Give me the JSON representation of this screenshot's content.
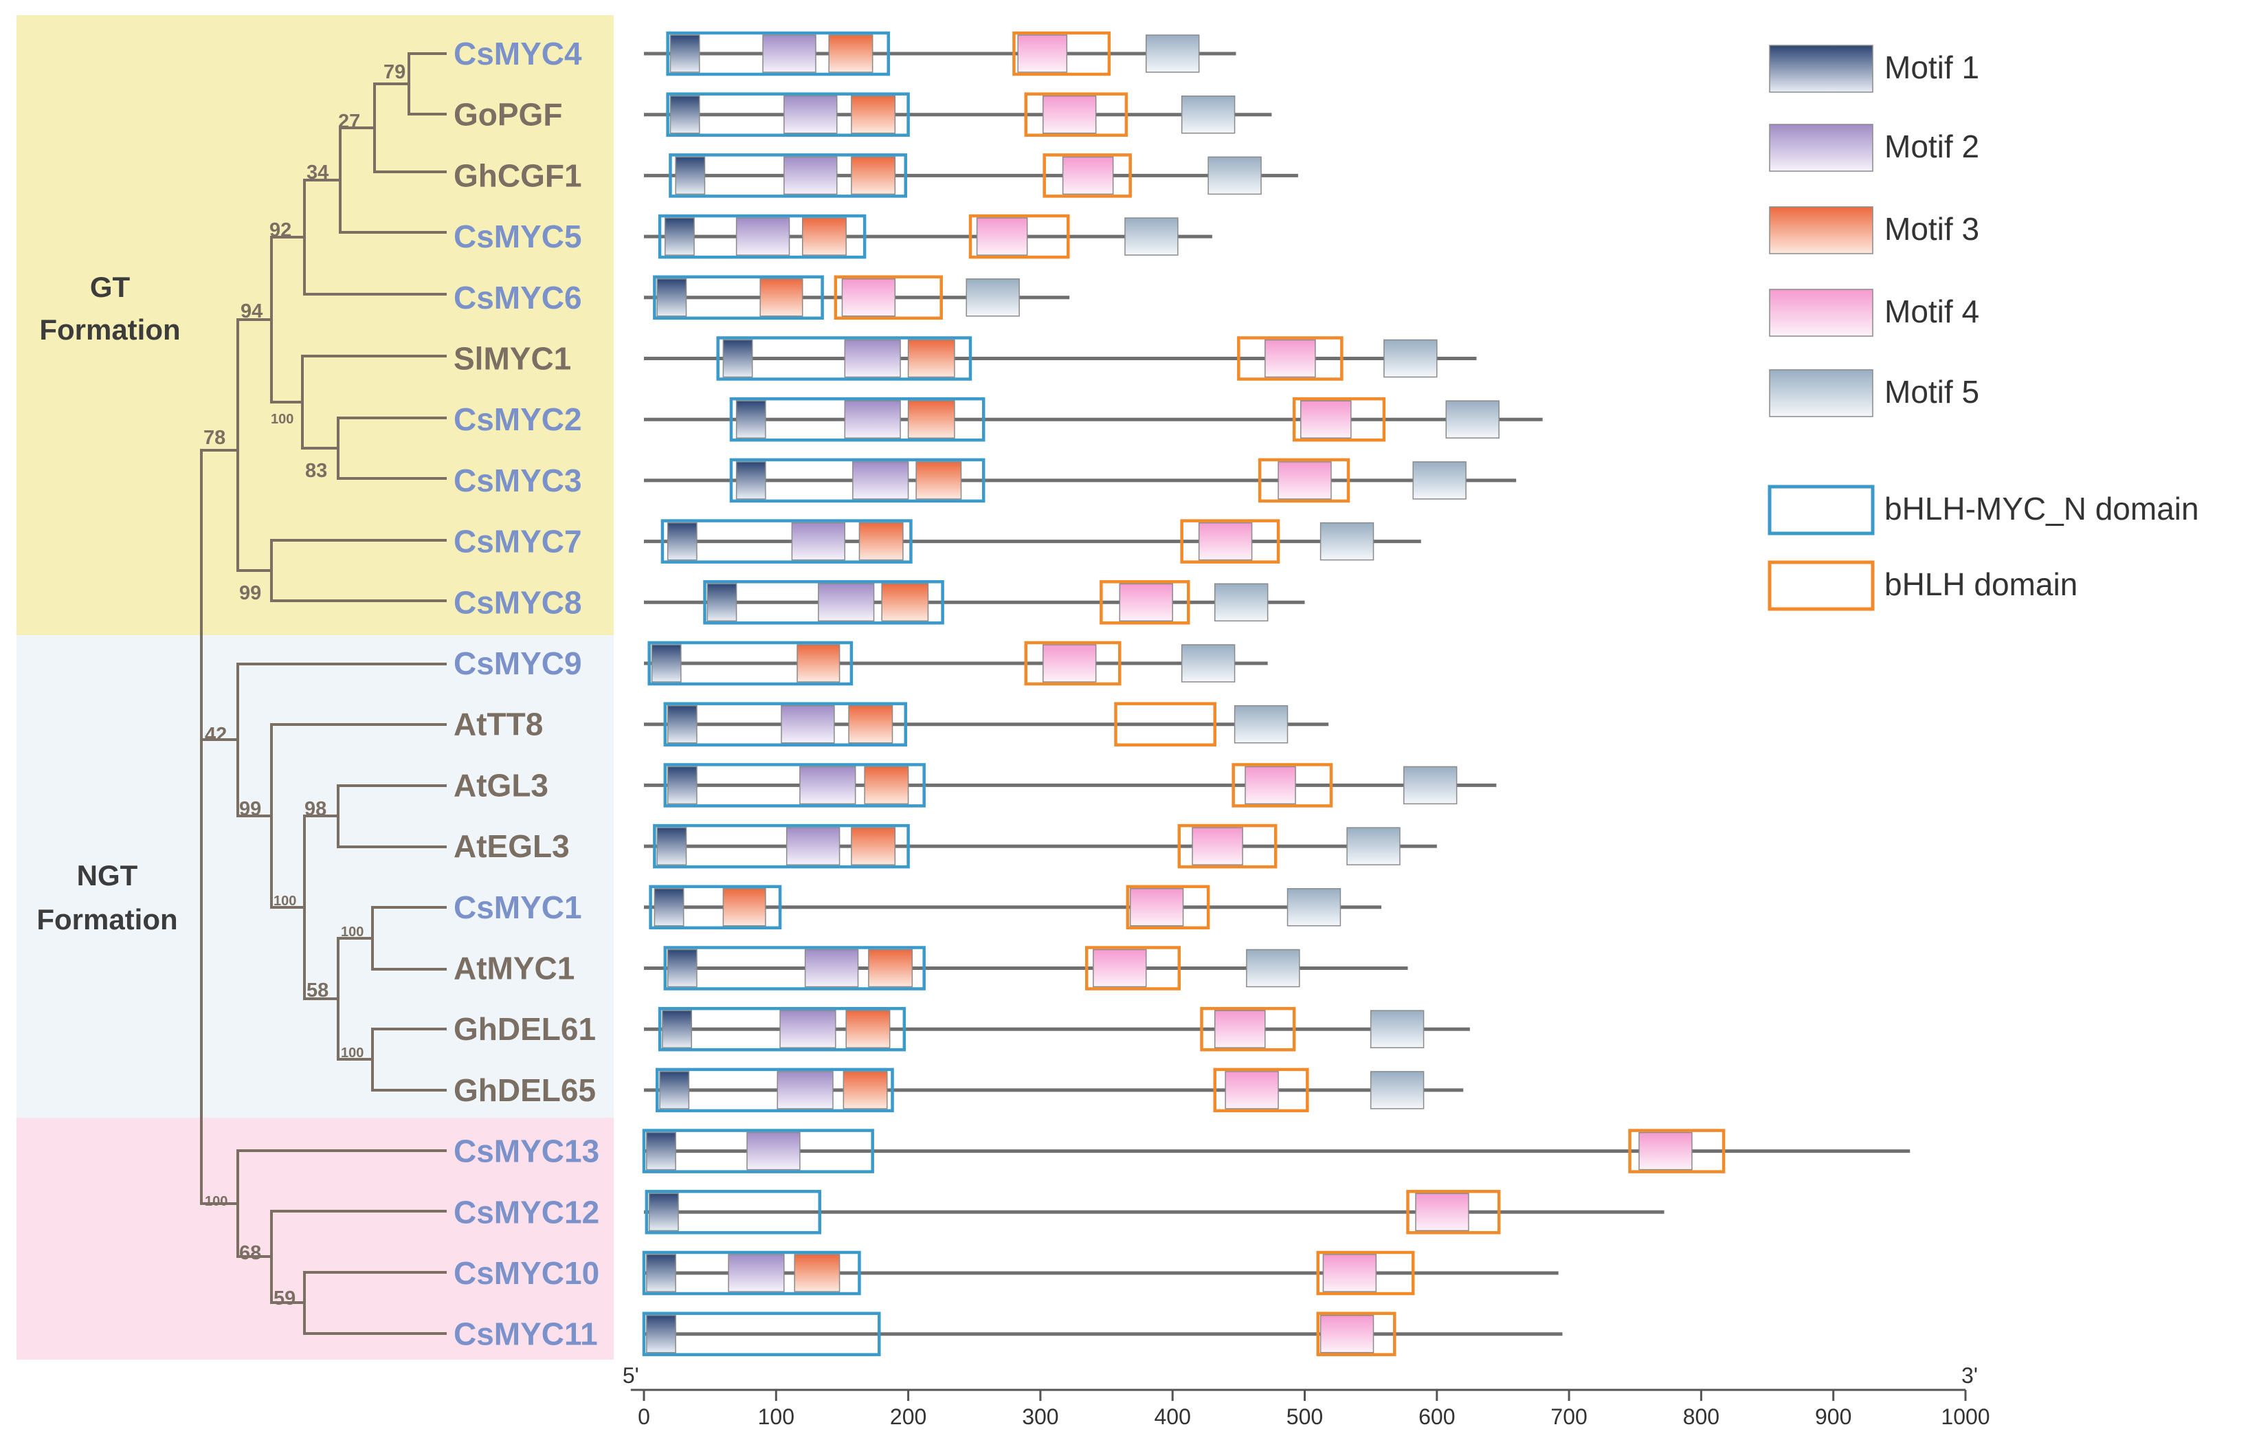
{
  "chart_data": {
    "type": "diagram",
    "title": "",
    "groups": [
      {
        "label_line1": "GT",
        "label_line2": "Formation",
        "color": "#f6f0b8"
      },
      {
        "label_line1": "NGT",
        "label_line2": "Formation",
        "color": "#f0f5f9"
      },
      {
        "label_line1": "",
        "label_line2": "",
        "color": "#fce1ec"
      }
    ],
    "tree": {
      "tips": [
        {
          "name": "CsMYC4",
          "color": "#7b91c9"
        },
        {
          "name": "GoPGF",
          "color": "#7b6e63"
        },
        {
          "name": "GhCGF1",
          "color": "#7b6e63"
        },
        {
          "name": "CsMYC5",
          "color": "#7b91c9"
        },
        {
          "name": "CsMYC6",
          "color": "#7b91c9"
        },
        {
          "name": "SlMYC1",
          "color": "#7b6e63"
        },
        {
          "name": "CsMYC2",
          "color": "#7b91c9"
        },
        {
          "name": "CsMYC3",
          "color": "#7b91c9"
        },
        {
          "name": "CsMYC7",
          "color": "#7b91c9"
        },
        {
          "name": "CsMYC8",
          "color": "#7b91c9"
        },
        {
          "name": "CsMYC9",
          "color": "#7b91c9"
        },
        {
          "name": "AtTT8",
          "color": "#7b6e63"
        },
        {
          "name": "AtGL3",
          "color": "#7b6e63"
        },
        {
          "name": "AtEGL3",
          "color": "#7b6e63"
        },
        {
          "name": "CsMYC1",
          "color": "#7b91c9"
        },
        {
          "name": "AtMYC1",
          "color": "#7b6e63"
        },
        {
          "name": "GhDEL61",
          "color": "#7b6e63"
        },
        {
          "name": "GhDEL65",
          "color": "#7b6e63"
        },
        {
          "name": "CsMYC13",
          "color": "#7b91c9"
        },
        {
          "name": "CsMYC12",
          "color": "#7b91c9"
        },
        {
          "name": "CsMYC10",
          "color": "#7b91c9"
        },
        {
          "name": "CsMYC11",
          "color": "#7b91c9"
        }
      ],
      "bootstrap": [
        "79",
        "27",
        "34",
        "92",
        "94",
        "100",
        "83",
        "78",
        "99",
        "42",
        "99",
        "98",
        "100",
        "100",
        "58",
        "100",
        "100",
        "68",
        "59"
      ]
    },
    "axis": {
      "min": 0,
      "max": 1000,
      "ticks": [
        0,
        100,
        200,
        300,
        400,
        500,
        600,
        700,
        800,
        900,
        1000
      ],
      "end_labels": [
        "5'",
        "3'"
      ]
    },
    "legend": [
      {
        "key": "motif1",
        "label": "Motif 1",
        "color": "#3b5585"
      },
      {
        "key": "motif2",
        "label": "Motif 2",
        "color": "#a895c8"
      },
      {
        "key": "motif3",
        "label": "Motif 3",
        "color": "#ef7c55"
      },
      {
        "key": "motif4",
        "label": "Motif 4",
        "color": "#f6a5d3"
      },
      {
        "key": "motif5",
        "label": "Motif 5",
        "color": "#a3b5c7"
      },
      {
        "key": "myc_n",
        "label": "bHLH-MYC_N domain",
        "color": "#3b9ac9"
      },
      {
        "key": "bhlh",
        "label": "bHLH domain",
        "color": "#f08a2b"
      }
    ],
    "proteins": [
      {
        "name": "CsMYC4",
        "length": 448,
        "motifs": [
          [
            1,
            20,
            42
          ],
          [
            2,
            90,
            130
          ],
          [
            3,
            140,
            173
          ],
          [
            4,
            283,
            320
          ],
          [
            5,
            380,
            420
          ]
        ],
        "myc_n": [
          18,
          185
        ],
        "bhlh": [
          280,
          352
        ]
      },
      {
        "name": "GoPGF",
        "length": 475,
        "motifs": [
          [
            1,
            20,
            42
          ],
          [
            2,
            106,
            146
          ],
          [
            3,
            157,
            190
          ],
          [
            4,
            302,
            342
          ],
          [
            5,
            407,
            447
          ]
        ],
        "myc_n": [
          18,
          200
        ],
        "bhlh": [
          289,
          365
        ]
      },
      {
        "name": "GhCGF1",
        "length": 495,
        "motifs": [
          [
            1,
            24,
            46
          ],
          [
            2,
            106,
            146
          ],
          [
            3,
            157,
            190
          ],
          [
            4,
            317,
            355
          ],
          [
            5,
            427,
            467
          ]
        ],
        "myc_n": [
          20,
          198
        ],
        "bhlh": [
          303,
          368
        ]
      },
      {
        "name": "CsMYC5",
        "length": 430,
        "motifs": [
          [
            1,
            16,
            38
          ],
          [
            2,
            70,
            110
          ],
          [
            3,
            120,
            153
          ],
          [
            4,
            252,
            290
          ],
          [
            5,
            364,
            404
          ]
        ],
        "myc_n": [
          12,
          167
        ],
        "bhlh": [
          247,
          321
        ]
      },
      {
        "name": "CsMYC6",
        "length": 322,
        "motifs": [
          [
            1,
            10,
            32
          ],
          [
            2,
            0,
            0
          ],
          [
            3,
            88,
            120
          ],
          [
            4,
            150,
            190
          ],
          [
            5,
            244,
            284
          ]
        ],
        "myc_n": [
          8,
          135
        ],
        "bhlh": [
          145,
          225
        ]
      },
      {
        "name": "SlMYC1",
        "length": 630,
        "motifs": [
          [
            1,
            60,
            82
          ],
          [
            2,
            152,
            194
          ],
          [
            3,
            200,
            235
          ],
          [
            4,
            470,
            508
          ],
          [
            5,
            560,
            600
          ]
        ],
        "myc_n": [
          56,
          247
        ],
        "bhlh": [
          450,
          528
        ]
      },
      {
        "name": "CsMYC2",
        "length": 680,
        "motifs": [
          [
            1,
            70,
            92
          ],
          [
            2,
            152,
            194
          ],
          [
            3,
            200,
            235
          ],
          [
            4,
            497,
            535
          ],
          [
            5,
            607,
            647
          ]
        ],
        "myc_n": [
          66,
          257
        ],
        "bhlh": [
          492,
          560
        ]
      },
      {
        "name": "CsMYC3",
        "length": 660,
        "motifs": [
          [
            1,
            70,
            92
          ],
          [
            2,
            158,
            200
          ],
          [
            3,
            206,
            240
          ],
          [
            4,
            480,
            520
          ],
          [
            5,
            582,
            622
          ]
        ],
        "myc_n": [
          66,
          257
        ],
        "bhlh": [
          466,
          533
        ]
      },
      {
        "name": "CsMYC7",
        "length": 588,
        "motifs": [
          [
            1,
            18,
            40
          ],
          [
            2,
            112,
            152
          ],
          [
            3,
            163,
            196
          ],
          [
            4,
            420,
            460
          ],
          [
            5,
            512,
            552
          ]
        ],
        "myc_n": [
          14,
          202
        ],
        "bhlh": [
          407,
          480
        ]
      },
      {
        "name": "CsMYC8",
        "length": 500,
        "motifs": [
          [
            1,
            48,
            70
          ],
          [
            2,
            132,
            174
          ],
          [
            3,
            180,
            215
          ],
          [
            4,
            360,
            400
          ],
          [
            5,
            432,
            472
          ]
        ],
        "myc_n": [
          46,
          226
        ],
        "bhlh": [
          346,
          412
        ]
      },
      {
        "name": "CsMYC9",
        "length": 472,
        "motifs": [
          [
            1,
            6,
            28
          ],
          [
            2,
            0,
            0
          ],
          [
            3,
            116,
            148
          ],
          [
            4,
            302,
            342
          ],
          [
            5,
            407,
            447
          ]
        ],
        "myc_n": [
          4,
          157
        ],
        "bhlh": [
          289,
          360
        ]
      },
      {
        "name": "AtTT8",
        "length": 518,
        "motifs": [
          [
            1,
            18,
            40
          ],
          [
            2,
            104,
            144
          ],
          [
            3,
            155,
            188
          ],
          [
            4,
            0,
            0
          ],
          [
            5,
            447,
            487
          ]
        ],
        "myc_n": [
          16,
          198
        ],
        "bhlh": [
          357,
          432
        ]
      },
      {
        "name": "AtGL3",
        "length": 645,
        "motifs": [
          [
            1,
            18,
            40
          ],
          [
            2,
            118,
            160
          ],
          [
            3,
            167,
            200
          ],
          [
            4,
            455,
            493
          ],
          [
            5,
            575,
            615
          ]
        ],
        "myc_n": [
          16,
          212
        ],
        "bhlh": [
          446,
          520
        ]
      },
      {
        "name": "AtEGL3",
        "length": 600,
        "motifs": [
          [
            1,
            10,
            32
          ],
          [
            2,
            108,
            148
          ],
          [
            3,
            157,
            190
          ],
          [
            4,
            415,
            453
          ],
          [
            5,
            532,
            572
          ]
        ],
        "myc_n": [
          8,
          200
        ],
        "bhlh": [
          405,
          478
        ]
      },
      {
        "name": "CsMYC1",
        "length": 558,
        "motifs": [
          [
            1,
            8,
            30
          ],
          [
            2,
            0,
            0
          ],
          [
            3,
            60,
            92
          ],
          [
            4,
            368,
            408
          ],
          [
            5,
            487,
            527
          ]
        ],
        "myc_n": [
          5,
          103
        ],
        "bhlh": [
          366,
          427
        ]
      },
      {
        "name": "AtMYC1",
        "length": 578,
        "motifs": [
          [
            1,
            18,
            40
          ],
          [
            2,
            122,
            162
          ],
          [
            3,
            170,
            203
          ],
          [
            4,
            340,
            380
          ],
          [
            5,
            456,
            496
          ]
        ],
        "myc_n": [
          16,
          212
        ],
        "bhlh": [
          335,
          405
        ]
      },
      {
        "name": "GhDEL61",
        "length": 625,
        "motifs": [
          [
            1,
            14,
            36
          ],
          [
            2,
            103,
            145
          ],
          [
            3,
            153,
            186
          ],
          [
            4,
            432,
            470
          ],
          [
            5,
            550,
            590
          ]
        ],
        "myc_n": [
          12,
          197
        ],
        "bhlh": [
          422,
          492
        ]
      },
      {
        "name": "GhDEL65",
        "length": 620,
        "motifs": [
          [
            1,
            12,
            34
          ],
          [
            2,
            101,
            143
          ],
          [
            3,
            151,
            184
          ],
          [
            4,
            440,
            480
          ],
          [
            5,
            550,
            590
          ]
        ],
        "myc_n": [
          10,
          188
        ],
        "bhlh": [
          432,
          502
        ]
      },
      {
        "name": "CsMYC13",
        "length": 958,
        "motifs": [
          [
            1,
            2,
            24
          ],
          [
            2,
            78,
            118
          ],
          [
            3,
            0,
            0
          ],
          [
            4,
            753,
            793
          ],
          [
            5,
            0,
            0
          ]
        ],
        "myc_n": [
          0,
          173
        ],
        "bhlh": [
          746,
          817
        ]
      },
      {
        "name": "CsMYC12",
        "length": 772,
        "motifs": [
          [
            1,
            4,
            26
          ],
          [
            2,
            0,
            0
          ],
          [
            3,
            0,
            0
          ],
          [
            4,
            584,
            624
          ],
          [
            5,
            0,
            0
          ]
        ],
        "myc_n": [
          2,
          133
        ],
        "bhlh": [
          578,
          647
        ]
      },
      {
        "name": "CsMYC10",
        "length": 692,
        "motifs": [
          [
            1,
            2,
            24
          ],
          [
            2,
            64,
            106
          ],
          [
            3,
            114,
            148
          ],
          [
            4,
            514,
            554
          ],
          [
            5,
            0,
            0
          ]
        ],
        "myc_n": [
          0,
          163
        ],
        "bhlh": [
          510,
          582
        ]
      },
      {
        "name": "CsMYC11",
        "length": 695,
        "motifs": [
          [
            1,
            2,
            24
          ],
          [
            2,
            0,
            0
          ],
          [
            3,
            0,
            0
          ],
          [
            4,
            512,
            552
          ],
          [
            5,
            0,
            0
          ]
        ],
        "myc_n": [
          0,
          178
        ],
        "bhlh": [
          510,
          568
        ]
      }
    ]
  }
}
